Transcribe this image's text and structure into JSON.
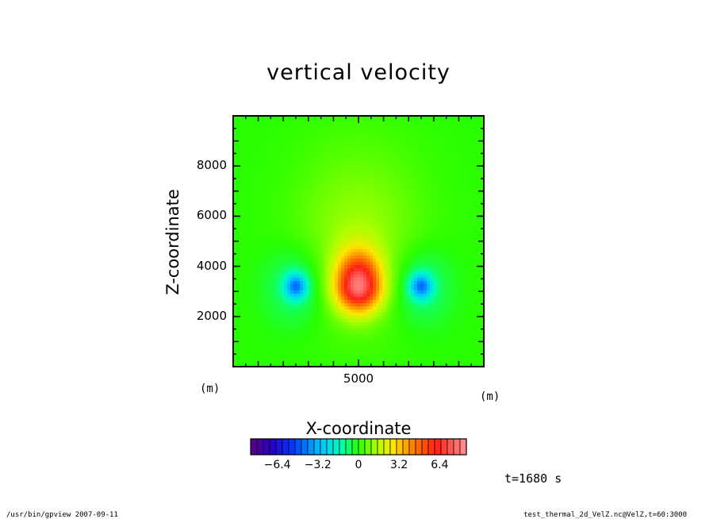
{
  "chart_data": {
    "type": "heatmap",
    "title": "vertical velocity",
    "xlabel": "X-coordinate",
    "ylabel": "Z-coordinate",
    "x_unit": "(m)",
    "y_unit": "(m)",
    "xlim": [
      0,
      10000
    ],
    "ylim": [
      0,
      10000
    ],
    "x_ticks": [
      5000
    ],
    "y_ticks": [
      2000,
      4000,
      6000,
      8000
    ],
    "colorbar": {
      "ticks": [
        -6.4,
        -3.2,
        0,
        3.2,
        6.4
      ],
      "tick_labels": [
        "−6.4",
        "−3.2",
        "0",
        "3.2",
        "6.4"
      ],
      "range": [
        -8.5,
        8.5
      ],
      "colormap": "rainbow"
    },
    "field_features": [
      {
        "kind": "updraft",
        "x": 5000,
        "z": 3200,
        "max": 7.2
      },
      {
        "kind": "downdraft",
        "x": 2500,
        "z": 3200,
        "min": -3.5
      },
      {
        "kind": "downdraft",
        "x": 7500,
        "z": 3200,
        "min": -3.5
      }
    ],
    "time_label": "t=1680 s"
  },
  "footer": {
    "left": "/usr/bin/gpview   2007-09-11",
    "right": "test_thermal_2d_VelZ.nc@VelZ,t=60:3000"
  }
}
